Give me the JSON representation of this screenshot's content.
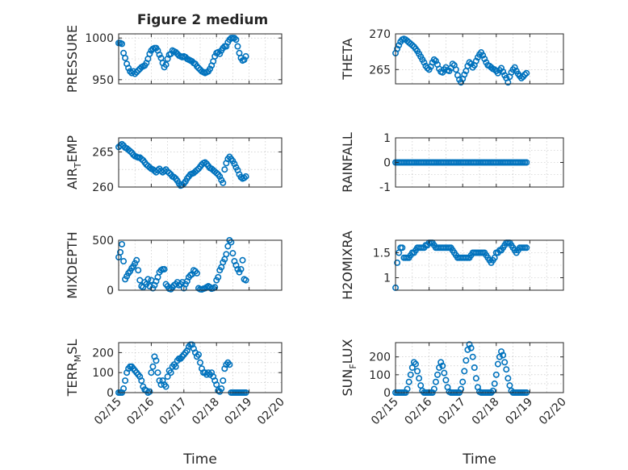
{
  "title": "Figure 2 medium",
  "marker_color": "#0072BD",
  "x_label": "Time",
  "x_tick_labels": [
    "02/15",
    "02/16",
    "02/17",
    "02/18",
    "02/19",
    "02/20"
  ],
  "chart_data": [
    {
      "type": "scatter",
      "name": "pressure",
      "ylabel": "PRESSURE",
      "xlim": [
        0,
        5
      ],
      "ylim": [
        945,
        1005
      ],
      "yticks": [
        950,
        1000
      ],
      "ytick_labels": [
        "950",
        "1000"
      ],
      "x": [
        0.0,
        0.05,
        0.1,
        0.15,
        0.2,
        0.25,
        0.3,
        0.35,
        0.4,
        0.45,
        0.5,
        0.55,
        0.6,
        0.65,
        0.7,
        0.75,
        0.8,
        0.85,
        0.9,
        0.95,
        1.0,
        1.05,
        1.1,
        1.15,
        1.2,
        1.25,
        1.3,
        1.35,
        1.4,
        1.45,
        1.5,
        1.55,
        1.6,
        1.65,
        1.7,
        1.75,
        1.8,
        1.85,
        1.9,
        1.95,
        2.0,
        2.05,
        2.1,
        2.15,
        2.2,
        2.25,
        2.3,
        2.35,
        2.4,
        2.45,
        2.5,
        2.55,
        2.6,
        2.65,
        2.7,
        2.75,
        2.8,
        2.85,
        2.9,
        2.95,
        3.0,
        3.05,
        3.1,
        3.15,
        3.2,
        3.25,
        3.3,
        3.35,
        3.4,
        3.45,
        3.5,
        3.55,
        3.6,
        3.65,
        3.7,
        3.75,
        3.8,
        3.85,
        3.9
      ],
      "values": [
        994,
        994,
        993,
        982,
        976,
        969,
        964,
        960,
        958,
        960,
        957,
        959,
        961,
        963,
        965,
        966,
        967,
        970,
        975,
        981,
        985,
        987,
        988,
        988,
        985,
        980,
        976,
        970,
        965,
        968,
        975,
        980,
        981,
        985,
        984,
        983,
        981,
        979,
        978,
        977,
        978,
        977,
        975,
        974,
        973,
        972,
        970,
        969,
        966,
        964,
        962,
        960,
        959,
        958,
        959,
        960,
        963,
        967,
        972,
        978,
        982,
        983,
        981,
        985,
        988,
        990,
        990,
        995,
        998,
        1000,
        1000,
        1000,
        998,
        990,
        982,
        976,
        973,
        974,
        978
      ],
      "marker": "o"
    },
    {
      "type": "scatter",
      "name": "theta",
      "ylabel": "THETA",
      "xlim": [
        0,
        5
      ],
      "ylim": [
        263,
        270
      ],
      "yticks": [
        265,
        270
      ],
      "ytick_labels": [
        "265",
        "270"
      ],
      "x": [
        0.0,
        0.05,
        0.1,
        0.15,
        0.2,
        0.25,
        0.3,
        0.35,
        0.4,
        0.45,
        0.5,
        0.55,
        0.6,
        0.65,
        0.7,
        0.75,
        0.8,
        0.85,
        0.9,
        0.95,
        1.0,
        1.05,
        1.1,
        1.15,
        1.2,
        1.25,
        1.3,
        1.35,
        1.4,
        1.45,
        1.5,
        1.55,
        1.6,
        1.65,
        1.7,
        1.75,
        1.8,
        1.85,
        1.9,
        1.95,
        2.0,
        2.05,
        2.1,
        2.15,
        2.2,
        2.25,
        2.3,
        2.35,
        2.4,
        2.45,
        2.5,
        2.55,
        2.6,
        2.65,
        2.7,
        2.75,
        2.8,
        2.85,
        2.9,
        2.95,
        3.0,
        3.05,
        3.1,
        3.15,
        3.2,
        3.25,
        3.3,
        3.35,
        3.4,
        3.45,
        3.5,
        3.55,
        3.6,
        3.65,
        3.7,
        3.75,
        3.8,
        3.85,
        3.9
      ],
      "values": [
        267.3,
        267.9,
        268.4,
        268.9,
        269.2,
        269.3,
        269.2,
        269.0,
        268.8,
        268.6,
        268.4,
        268.2,
        267.9,
        267.6,
        267.2,
        266.8,
        266.4,
        266.0,
        265.5,
        265.2,
        265.0,
        265.4,
        266.0,
        266.4,
        266.2,
        265.7,
        265.1,
        264.7,
        264.6,
        265.0,
        265.3,
        264.9,
        264.8,
        265.2,
        265.8,
        265.6,
        265.0,
        264.2,
        263.6,
        263.2,
        263.7,
        264.3,
        264.8,
        265.5,
        266.0,
        265.8,
        265.3,
        265.6,
        266.2,
        266.7,
        267.1,
        267.4,
        267.0,
        266.5,
        266.0,
        265.6,
        265.5,
        265.3,
        265.1,
        265.0,
        264.8,
        264.5,
        264.9,
        265.2,
        264.7,
        264.2,
        263.8,
        263.2,
        264.0,
        264.6,
        265.0,
        265.3,
        264.8,
        264.4,
        264.1,
        263.8,
        264.0,
        264.3,
        264.5
      ],
      "marker": "o"
    },
    {
      "type": "scatter",
      "name": "air_temp",
      "ylabel": "AIR_TEMP",
      "xlim": [
        0,
        5
      ],
      "ylim": [
        260,
        267
      ],
      "yticks": [
        260,
        265
      ],
      "ytick_labels": [
        "260",
        "265"
      ],
      "x": [
        0.0,
        0.05,
        0.1,
        0.15,
        0.2,
        0.25,
        0.3,
        0.35,
        0.4,
        0.45,
        0.5,
        0.55,
        0.6,
        0.65,
        0.7,
        0.75,
        0.8,
        0.85,
        0.9,
        0.95,
        1.0,
        1.05,
        1.1,
        1.15,
        1.2,
        1.25,
        1.3,
        1.35,
        1.4,
        1.45,
        1.5,
        1.55,
        1.6,
        1.65,
        1.7,
        1.75,
        1.8,
        1.85,
        1.9,
        1.95,
        2.0,
        2.05,
        2.1,
        2.15,
        2.2,
        2.25,
        2.3,
        2.35,
        2.4,
        2.45,
        2.5,
        2.55,
        2.6,
        2.65,
        2.7,
        2.75,
        2.8,
        2.85,
        2.9,
        2.95,
        3.0,
        3.05,
        3.1,
        3.15,
        3.2,
        3.25,
        3.3,
        3.35,
        3.4,
        3.45,
        3.5,
        3.55,
        3.6,
        3.65,
        3.7,
        3.75,
        3.8,
        3.85,
        3.9
      ],
      "values": [
        265.7,
        265.9,
        266.1,
        265.9,
        265.6,
        265.5,
        265.3,
        265.1,
        264.9,
        264.6,
        264.4,
        264.3,
        264.2,
        264.2,
        264.0,
        263.8,
        263.5,
        263.2,
        263.0,
        262.8,
        262.6,
        262.5,
        262.3,
        262.1,
        262.4,
        262.6,
        262.3,
        262.1,
        262.3,
        262.5,
        262.2,
        262.0,
        261.8,
        261.5,
        261.4,
        261.2,
        260.9,
        260.5,
        260.2,
        260.3,
        260.5,
        260.8,
        261.2,
        261.5,
        261.8,
        261.9,
        262.0,
        262.2,
        262.4,
        262.6,
        262.9,
        263.2,
        263.4,
        263.5,
        263.3,
        263.0,
        262.7,
        262.6,
        262.4,
        262.2,
        262.0,
        261.8,
        261.5,
        261.0,
        260.6,
        262.5,
        263.4,
        264.0,
        264.3,
        264.0,
        263.7,
        263.3,
        262.8,
        262.4,
        261.8,
        261.4,
        261.2,
        261.3,
        261.5
      ],
      "marker": "o"
    },
    {
      "type": "scatter",
      "name": "rainfall",
      "ylabel": "RAINFALL",
      "xlim": [
        0,
        5
      ],
      "ylim": [
        -1,
        1
      ],
      "yticks": [
        -1,
        0,
        1
      ],
      "ytick_labels": [
        "-1",
        "0",
        "1"
      ],
      "x": [
        0.0,
        0.05,
        0.1,
        0.15,
        0.2,
        0.25,
        0.3,
        0.35,
        0.4,
        0.45,
        0.5,
        0.55,
        0.6,
        0.65,
        0.7,
        0.75,
        0.8,
        0.85,
        0.9,
        0.95,
        1.0,
        1.05,
        1.1,
        1.15,
        1.2,
        1.25,
        1.3,
        1.35,
        1.4,
        1.45,
        1.5,
        1.55,
        1.6,
        1.65,
        1.7,
        1.75,
        1.8,
        1.85,
        1.9,
        1.95,
        2.0,
        2.05,
        2.1,
        2.15,
        2.2,
        2.25,
        2.3,
        2.35,
        2.4,
        2.45,
        2.5,
        2.55,
        2.6,
        2.65,
        2.7,
        2.75,
        2.8,
        2.85,
        2.9,
        2.95,
        3.0,
        3.05,
        3.1,
        3.15,
        3.2,
        3.25,
        3.3,
        3.35,
        3.4,
        3.45,
        3.5,
        3.55,
        3.6,
        3.65,
        3.7,
        3.75,
        3.8,
        3.85,
        3.9
      ],
      "values": [
        0,
        0,
        0,
        0,
        0,
        0,
        0,
        0,
        0,
        0,
        0,
        0,
        0,
        0,
        0,
        0,
        0,
        0,
        0,
        0,
        0,
        0,
        0,
        0,
        0,
        0,
        0,
        0,
        0,
        0,
        0,
        0,
        0,
        0,
        0,
        0,
        0,
        0,
        0,
        0,
        0,
        0,
        0,
        0,
        0,
        0,
        0,
        0,
        0,
        0,
        0,
        0,
        0,
        0,
        0,
        0,
        0,
        0,
        0,
        0,
        0,
        0,
        0,
        0,
        0,
        0,
        0,
        0,
        0,
        0,
        0,
        0,
        0,
        0,
        0,
        0,
        0,
        0,
        0
      ],
      "marker": "o"
    },
    {
      "type": "scatter",
      "name": "mixdepth",
      "ylabel": "MIXDEPTH",
      "xlim": [
        0,
        5
      ],
      "ylim": [
        0,
        500
      ],
      "yticks": [
        0,
        500
      ],
      "ytick_labels": [
        "0",
        "500"
      ],
      "x": [
        0.0,
        0.05,
        0.1,
        0.15,
        0.2,
        0.25,
        0.3,
        0.35,
        0.4,
        0.45,
        0.5,
        0.55,
        0.6,
        0.65,
        0.7,
        0.75,
        0.8,
        0.85,
        0.9,
        0.95,
        1.0,
        1.05,
        1.1,
        1.15,
        1.2,
        1.25,
        1.3,
        1.35,
        1.4,
        1.45,
        1.5,
        1.55,
        1.6,
        1.65,
        1.7,
        1.75,
        1.8,
        1.85,
        1.9,
        1.95,
        2.0,
        2.05,
        2.1,
        2.15,
        2.2,
        2.25,
        2.3,
        2.35,
        2.4,
        2.45,
        2.5,
        2.55,
        2.6,
        2.65,
        2.7,
        2.75,
        2.8,
        2.85,
        2.9,
        2.95,
        3.0,
        3.05,
        3.1,
        3.15,
        3.2,
        3.25,
        3.3,
        3.35,
        3.4,
        3.45,
        3.5,
        3.55,
        3.6,
        3.65,
        3.7,
        3.75,
        3.8,
        3.85,
        3.9
      ],
      "values": [
        330,
        380,
        460,
        290,
        110,
        140,
        170,
        190,
        220,
        240,
        270,
        300,
        200,
        100,
        40,
        30,
        80,
        60,
        110,
        40,
        100,
        20,
        50,
        90,
        130,
        180,
        200,
        210,
        210,
        60,
        40,
        15,
        10,
        30,
        50,
        60,
        80,
        50,
        60,
        80,
        20,
        60,
        90,
        130,
        150,
        160,
        200,
        190,
        170,
        20,
        10,
        8,
        15,
        20,
        30,
        40,
        30,
        15,
        20,
        30,
        100,
        130,
        200,
        230,
        280,
        310,
        360,
        440,
        500,
        480,
        370,
        290,
        250,
        210,
        180,
        210,
        300,
        110,
        100
      ],
      "marker": "o"
    },
    {
      "type": "scatter",
      "name": "h2omixra",
      "ylabel": "H2OMIXRA",
      "xlim": [
        0,
        5
      ],
      "ylim": [
        0.75,
        1.75
      ],
      "yticks": [
        1,
        1.5
      ],
      "ytick_labels": [
        "1",
        "1.5"
      ],
      "x": [
        0.0,
        0.05,
        0.1,
        0.15,
        0.2,
        0.25,
        0.3,
        0.35,
        0.4,
        0.45,
        0.5,
        0.55,
        0.6,
        0.65,
        0.7,
        0.75,
        0.8,
        0.85,
        0.9,
        0.95,
        1.0,
        1.05,
        1.1,
        1.15,
        1.2,
        1.25,
        1.3,
        1.35,
        1.4,
        1.45,
        1.5,
        1.55,
        1.6,
        1.65,
        1.7,
        1.75,
        1.8,
        1.85,
        1.9,
        1.95,
        2.0,
        2.05,
        2.1,
        2.15,
        2.2,
        2.25,
        2.3,
        2.35,
        2.4,
        2.45,
        2.5,
        2.55,
        2.6,
        2.65,
        2.7,
        2.75,
        2.8,
        2.85,
        2.9,
        2.95,
        3.0,
        3.05,
        3.1,
        3.15,
        3.2,
        3.25,
        3.3,
        3.35,
        3.4,
        3.45,
        3.5,
        3.55,
        3.6,
        3.65,
        3.7,
        3.75,
        3.8,
        3.85,
        3.9
      ],
      "values": [
        0.8,
        1.3,
        1.5,
        1.6,
        1.6,
        1.4,
        1.4,
        1.4,
        1.4,
        1.45,
        1.5,
        1.5,
        1.55,
        1.6,
        1.6,
        1.6,
        1.6,
        1.6,
        1.65,
        1.65,
        1.7,
        1.7,
        1.7,
        1.65,
        1.6,
        1.6,
        1.6,
        1.6,
        1.6,
        1.6,
        1.6,
        1.6,
        1.6,
        1.6,
        1.55,
        1.5,
        1.45,
        1.4,
        1.4,
        1.4,
        1.4,
        1.4,
        1.4,
        1.4,
        1.4,
        1.45,
        1.5,
        1.5,
        1.5,
        1.5,
        1.5,
        1.5,
        1.5,
        1.5,
        1.45,
        1.4,
        1.35,
        1.3,
        1.35,
        1.4,
        1.5,
        1.5,
        1.55,
        1.55,
        1.6,
        1.65,
        1.7,
        1.7,
        1.7,
        1.65,
        1.6,
        1.55,
        1.5,
        1.55,
        1.6,
        1.6,
        1.6,
        1.6,
        1.6
      ],
      "marker": "o"
    },
    {
      "type": "scatter",
      "name": "terr_msl",
      "ylabel": "TERR_MSL",
      "xlim": [
        0,
        5
      ],
      "ylim": [
        0,
        250
      ],
      "yticks": [
        0,
        100,
        200
      ],
      "ytick_labels": [
        "0",
        "100",
        "200"
      ],
      "x": [
        0.0,
        0.05,
        0.1,
        0.15,
        0.2,
        0.25,
        0.3,
        0.35,
        0.4,
        0.45,
        0.5,
        0.55,
        0.6,
        0.65,
        0.7,
        0.75,
        0.8,
        0.85,
        0.9,
        0.95,
        1.0,
        1.05,
        1.1,
        1.15,
        1.2,
        1.25,
        1.3,
        1.35,
        1.4,
        1.45,
        1.5,
        1.55,
        1.6,
        1.65,
        1.7,
        1.75,
        1.8,
        1.85,
        1.9,
        1.95,
        2.0,
        2.05,
        2.1,
        2.15,
        2.2,
        2.25,
        2.3,
        2.35,
        2.4,
        2.45,
        2.5,
        2.55,
        2.6,
        2.65,
        2.7,
        2.75,
        2.8,
        2.85,
        2.9,
        2.95,
        3.0,
        3.05,
        3.1,
        3.15,
        3.2,
        3.25,
        3.3,
        3.35,
        3.4,
        3.45,
        3.5,
        3.55,
        3.6,
        3.65,
        3.7,
        3.75,
        3.8,
        3.85,
        3.9
      ],
      "values": [
        0,
        0,
        0,
        20,
        60,
        100,
        120,
        130,
        130,
        120,
        110,
        100,
        90,
        80,
        60,
        30,
        15,
        10,
        0,
        5,
        100,
        130,
        180,
        160,
        100,
        60,
        40,
        60,
        40,
        30,
        80,
        110,
        100,
        130,
        140,
        130,
        160,
        170,
        170,
        180,
        190,
        200,
        210,
        230,
        240,
        240,
        220,
        200,
        180,
        190,
        150,
        120,
        100,
        100,
        90,
        100,
        90,
        100,
        80,
        60,
        40,
        10,
        5,
        20,
        60,
        120,
        140,
        150,
        140,
        0,
        0,
        0,
        0,
        0,
        0,
        0,
        0,
        0,
        0
      ],
      "marker": "o"
    },
    {
      "type": "scatter",
      "name": "sun_flux",
      "ylabel": "SUN_FLUX",
      "xlim": [
        0,
        5
      ],
      "ylim": [
        0,
        280
      ],
      "yticks": [
        0,
        100,
        200
      ],
      "ytick_labels": [
        "0",
        "100",
        "200"
      ],
      "x": [
        0.0,
        0.05,
        0.1,
        0.15,
        0.2,
        0.25,
        0.3,
        0.35,
        0.4,
        0.45,
        0.5,
        0.55,
        0.6,
        0.65,
        0.7,
        0.75,
        0.8,
        0.85,
        0.9,
        0.95,
        1.0,
        1.05,
        1.1,
        1.15,
        1.2,
        1.25,
        1.3,
        1.35,
        1.4,
        1.45,
        1.5,
        1.55,
        1.6,
        1.65,
        1.7,
        1.75,
        1.8,
        1.85,
        1.9,
        1.95,
        2.0,
        2.05,
        2.1,
        2.15,
        2.2,
        2.25,
        2.3,
        2.35,
        2.4,
        2.45,
        2.5,
        2.55,
        2.6,
        2.65,
        2.7,
        2.75,
        2.8,
        2.85,
        2.9,
        2.95,
        3.0,
        3.05,
        3.1,
        3.15,
        3.2,
        3.25,
        3.3,
        3.35,
        3.4,
        3.45,
        3.5,
        3.55,
        3.6,
        3.65,
        3.7,
        3.75,
        3.8,
        3.85,
        3.9
      ],
      "values": [
        0,
        0,
        0,
        0,
        0,
        0,
        0,
        20,
        60,
        100,
        140,
        170,
        160,
        120,
        80,
        40,
        10,
        0,
        0,
        0,
        0,
        0,
        0,
        20,
        60,
        100,
        140,
        170,
        150,
        110,
        70,
        30,
        5,
        0,
        0,
        0,
        0,
        0,
        0,
        20,
        60,
        120,
        180,
        240,
        270,
        250,
        200,
        140,
        80,
        30,
        5,
        0,
        0,
        0,
        0,
        0,
        0,
        0,
        10,
        50,
        100,
        160,
        200,
        230,
        210,
        170,
        130,
        80,
        40,
        10,
        0,
        0,
        0,
        0,
        0,
        0,
        0,
        0,
        0
      ],
      "marker": "o"
    }
  ]
}
